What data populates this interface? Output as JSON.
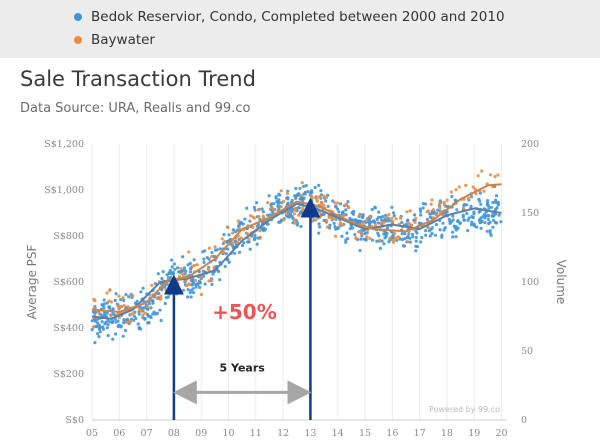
{
  "legend": [
    {
      "label": "Bedok Reservior, Condo, Completed between 2000 and 2010",
      "color": "#3f95d9"
    },
    {
      "label": "Baywater",
      "color": "#ef8b3c"
    }
  ],
  "header": {
    "title": "Sale Transaction Trend",
    "subtitle": "Data Source: URA, Realis and 99.co"
  },
  "chart_data": {
    "type": "scatter",
    "title": "Sale Transaction Trend",
    "ylabel_left": "Average PSF",
    "ylabel_right": "Volume",
    "x_ticks": [
      "05",
      "06",
      "07",
      "08",
      "09",
      "10",
      "11",
      "12",
      "13",
      "14",
      "15",
      "16",
      "17",
      "18",
      "19",
      "20"
    ],
    "xlim": [
      2005,
      2020.2
    ],
    "y_left_ticks": [
      "S$0",
      "S$200",
      "S$400",
      "S$600",
      "S$800",
      "S$1,000",
      "S$1,200"
    ],
    "y_left_lim": [
      0,
      1200
    ],
    "y_right_ticks": [
      "0",
      "50",
      "100",
      "150",
      "200"
    ],
    "y_right_lim": [
      0,
      200
    ],
    "grid": "vertical",
    "watermark": "Powered by 99.co",
    "series": [
      {
        "name": "Bedok Reservior, Condo, Completed between 2000 and 2010",
        "color": "#3f95d9",
        "trend": [
          [
            2005,
            450
          ],
          [
            2005.7,
            440
          ],
          [
            2006.5,
            480
          ],
          [
            2007.5,
            600
          ],
          [
            2008.5,
            615
          ],
          [
            2009.5,
            650
          ],
          [
            2010.5,
            780
          ],
          [
            2011.5,
            870
          ],
          [
            2012.5,
            940
          ],
          [
            2013.2,
            920
          ],
          [
            2014,
            880
          ],
          [
            2015,
            830
          ],
          [
            2016,
            850
          ],
          [
            2017,
            830
          ],
          [
            2018,
            890
          ],
          [
            2019,
            920
          ],
          [
            2020,
            900
          ]
        ],
        "band": [
          [
            2005,
            440
          ],
          [
            2007,
            480
          ],
          [
            2008,
            610
          ],
          [
            2009,
            630
          ],
          [
            2010,
            760
          ],
          [
            2011,
            860
          ],
          [
            2012,
            920
          ],
          [
            2013,
            940
          ],
          [
            2014,
            880
          ],
          [
            2015,
            840
          ],
          [
            2016,
            830
          ],
          [
            2017,
            840
          ],
          [
            2018,
            880
          ],
          [
            2019,
            910
          ],
          [
            2020,
            900
          ]
        ]
      },
      {
        "name": "Baywater",
        "color": "#ef8b3c",
        "trend": [
          [
            2005,
            480
          ],
          [
            2006,
            470
          ],
          [
            2007,
            510
          ],
          [
            2007.8,
            610
          ],
          [
            2008.5,
            620
          ],
          [
            2009.5,
            700
          ],
          [
            2010.5,
            830
          ],
          [
            2011.5,
            880
          ],
          [
            2012.5,
            950
          ],
          [
            2013.3,
            930
          ],
          [
            2014.5,
            860
          ],
          [
            2015.3,
            830
          ],
          [
            2016.5,
            820
          ],
          [
            2017.5,
            870
          ],
          [
            2018.5,
            960
          ],
          [
            2019.5,
            1020
          ],
          [
            2020,
            1025
          ]
        ],
        "band": [
          [
            2005,
            470
          ],
          [
            2007,
            500
          ],
          [
            2008,
            620
          ],
          [
            2009,
            640
          ],
          [
            2010,
            790
          ],
          [
            2011,
            870
          ],
          [
            2012,
            930
          ],
          [
            2013,
            950
          ],
          [
            2014,
            880
          ],
          [
            2015,
            830
          ],
          [
            2016,
            830
          ],
          [
            2017,
            860
          ],
          [
            2018,
            950
          ],
          [
            2019,
            1010
          ],
          [
            2020,
            1030
          ]
        ]
      }
    ],
    "annotations": [
      {
        "type": "arrow",
        "x": 2008,
        "y_from": 0,
        "y_to": 615,
        "color": "#123a8a"
      },
      {
        "type": "arrow",
        "x": 2013,
        "y_from": 0,
        "y_to": 950,
        "color": "#123a8a"
      },
      {
        "type": "text",
        "label": "+50%",
        "x": 2009.4,
        "y": 440,
        "color": "#f05454"
      },
      {
        "type": "text",
        "label": "5 Years",
        "x": 2010.5,
        "y": 210,
        "color": "#222"
      },
      {
        "type": "double-arrow",
        "x_from": 2008.4,
        "x_to": 2012.6,
        "y": 120,
        "color": "#a6a6a6"
      }
    ]
  }
}
